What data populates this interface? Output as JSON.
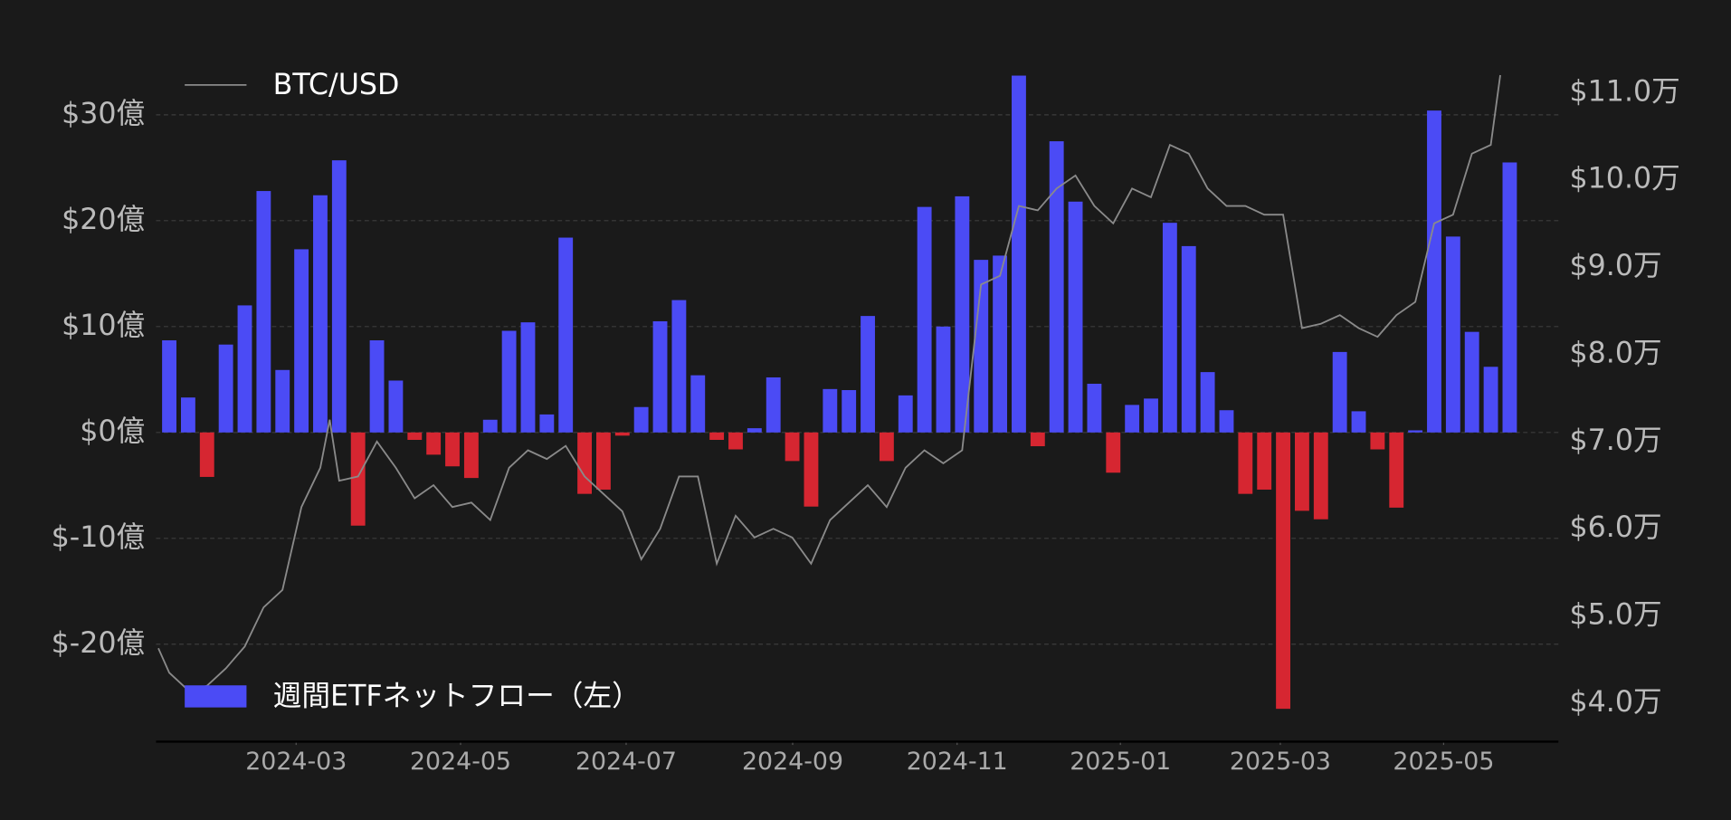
{
  "chart_data": {
    "type": "bar",
    "series": [
      {
        "name": "週間ETFネットフロー（左）",
        "type": "bar",
        "color": "#4b4bf5",
        "negative_color": "#d62631",
        "x": [
          0,
          1,
          2,
          3,
          4,
          5,
          6,
          7,
          8,
          9,
          10,
          11,
          12,
          13,
          14,
          15,
          16,
          17,
          18,
          19,
          20,
          21,
          22,
          23,
          24,
          25,
          26,
          27,
          28,
          29,
          30,
          31,
          32,
          33,
          34,
          35,
          36,
          37,
          38,
          39,
          40,
          41,
          42,
          43,
          44,
          45,
          46,
          47,
          48,
          49,
          50,
          51,
          52,
          53,
          54,
          55,
          56,
          57,
          58,
          59,
          60,
          61,
          62,
          63,
          64,
          65,
          66,
          67,
          68,
          69,
          70,
          71
        ],
        "values": [
          8.7,
          3.3,
          -4.2,
          8.3,
          12.0,
          22.8,
          5.9,
          17.3,
          22.4,
          25.7,
          -8.8,
          8.7,
          4.9,
          -0.7,
          -2.1,
          -3.2,
          -4.3,
          1.2,
          9.6,
          10.4,
          1.7,
          18.4,
          -5.8,
          -5.4,
          -0.3,
          2.4,
          10.5,
          12.5,
          5.4,
          -0.7,
          -1.6,
          0.4,
          5.2,
          -2.7,
          -7.0,
          4.1,
          4.0,
          11.0,
          -2.7,
          3.5,
          21.3,
          10.0,
          22.3,
          16.3,
          16.7,
          33.7,
          -1.3,
          27.5,
          21.8,
          4.6,
          -3.8,
          2.6,
          3.2,
          19.8,
          17.6,
          5.7,
          2.1,
          -5.8,
          -5.4,
          -26.1,
          -7.4,
          -8.2,
          7.6,
          2.0,
          -1.6,
          -7.1,
          0.2,
          30.4,
          18.5,
          9.5,
          6.2,
          25.5
        ]
      },
      {
        "name": "BTC/USD",
        "type": "line",
        "axis": "y2",
        "color": "#8a8a8a",
        "x": [
          -0.58,
          0,
          1,
          2,
          3,
          4,
          5,
          6,
          7,
          8,
          8.5,
          9,
          10,
          11,
          12,
          13,
          14,
          15,
          16,
          17,
          18,
          19,
          20,
          21,
          22,
          23,
          24,
          25,
          26,
          27,
          28,
          29,
          30,
          31,
          32,
          33,
          34,
          35,
          36,
          37,
          38,
          39,
          40,
          41,
          42,
          43,
          44,
          45,
          46,
          47,
          48,
          49,
          50,
          51,
          52,
          53,
          54,
          55,
          56,
          57,
          58,
          59,
          60,
          61,
          62,
          63,
          64,
          65,
          66,
          67,
          68,
          69,
          70,
          70.5
        ],
        "values": [
          4.63,
          4.35,
          4.15,
          4.2,
          4.4,
          4.65,
          5.1,
          5.3,
          6.25,
          6.7,
          7.25,
          6.55,
          6.6,
          7.0,
          6.7,
          6.35,
          6.5,
          6.25,
          6.3,
          6.1,
          6.7,
          6.9,
          6.8,
          6.95,
          6.6,
          6.4,
          6.2,
          5.65,
          6.0,
          6.6,
          6.6,
          5.6,
          6.15,
          5.9,
          6.0,
          5.9,
          5.6,
          6.1,
          6.3,
          6.5,
          6.25,
          6.7,
          6.9,
          6.75,
          6.9,
          8.8,
          8.9,
          9.7,
          9.65,
          9.9,
          10.05,
          9.7,
          9.5,
          9.9,
          9.8,
          10.4,
          10.3,
          9.9,
          9.7,
          9.7,
          9.6,
          9.6,
          8.3,
          8.35,
          8.45,
          8.3,
          8.2,
          8.45,
          8.6,
          9.5,
          9.6,
          10.3,
          10.4,
          11.2
        ]
      }
    ],
    "xlim": [
      -0.7,
      73.58
    ],
    "xticks": [
      {
        "value": 6.72,
        "label": "2024-03"
      },
      {
        "value": 15.43,
        "label": "2024-05"
      },
      {
        "value": 24.2,
        "label": "2024-07"
      },
      {
        "value": 33.02,
        "label": "2024-09"
      },
      {
        "value": 41.73,
        "label": "2024-11"
      },
      {
        "value": 50.38,
        "label": "2025-01"
      },
      {
        "value": 58.85,
        "label": "2025-03"
      },
      {
        "value": 67.5,
        "label": "2025-05"
      }
    ],
    "ylim": [
      -29.2,
      34.9
    ],
    "yticks": [
      {
        "value": 30,
        "label": "$30億"
      },
      {
        "value": 20,
        "label": "$20億"
      },
      {
        "value": 10,
        "label": "$10億"
      },
      {
        "value": 0,
        "label": "$0億"
      },
      {
        "value": -10,
        "label": "$-10億"
      },
      {
        "value": -20,
        "label": "$-20億"
      }
    ],
    "y2lim": [
      3.56,
      11.34
    ],
    "y2ticks": [
      {
        "value": 11,
        "label": "$11.0万"
      },
      {
        "value": 10,
        "label": "$10.0万"
      },
      {
        "value": 9,
        "label": "$9.0万"
      },
      {
        "value": 8,
        "label": "$8.0万"
      },
      {
        "value": 7,
        "label": "$7.0万"
      },
      {
        "value": 6,
        "label": "$6.0万"
      },
      {
        "value": 5,
        "label": "$5.0万"
      },
      {
        "value": 4,
        "label": "$4.0万"
      }
    ],
    "grid": true
  }
}
